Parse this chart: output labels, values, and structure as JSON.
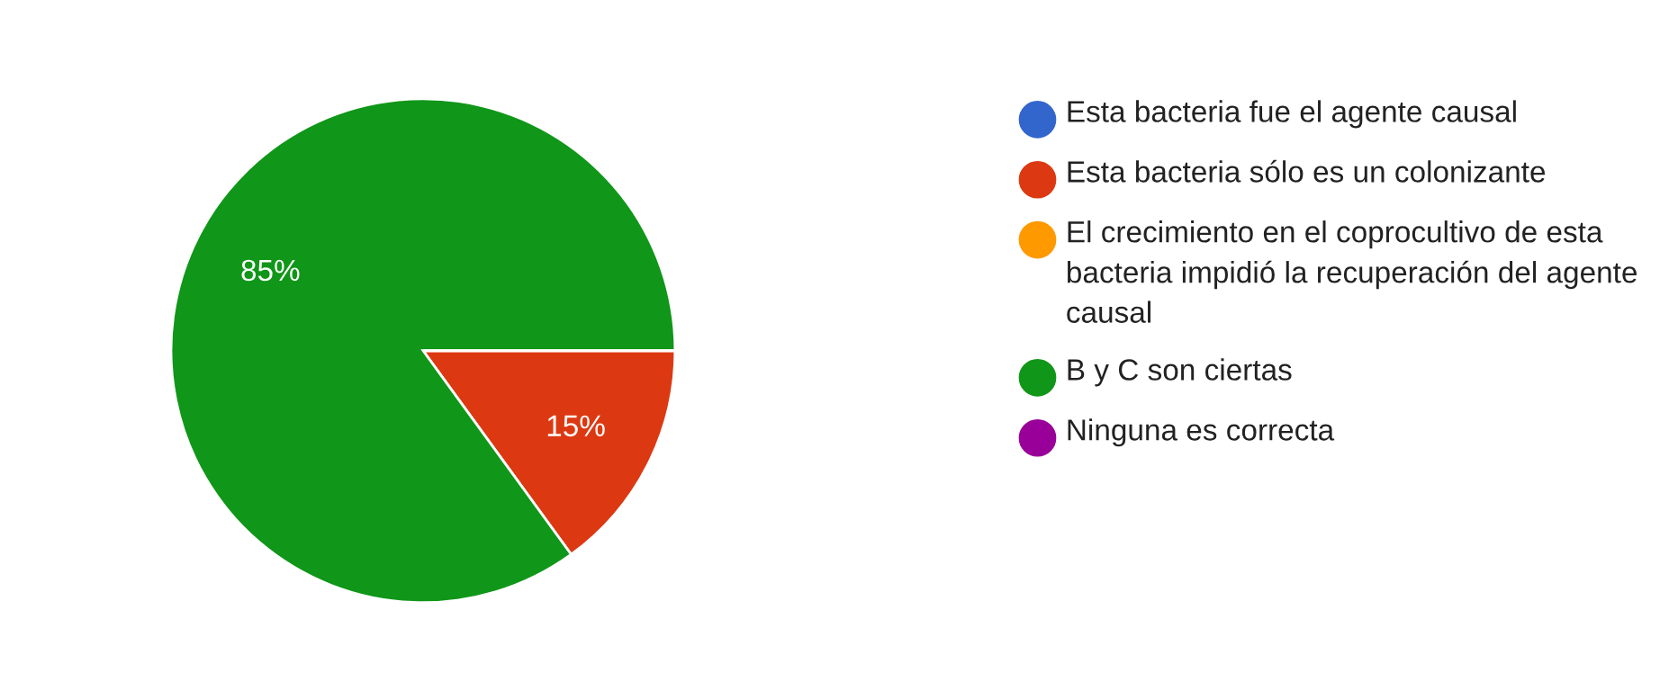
{
  "chart_data": {
    "type": "pie",
    "categories": [
      "Esta bacteria fue el agente causal",
      "Esta bacteria sólo es un colonizante",
      "El crecimiento en el coprocultivo de esta bacteria impidió la recuperación del agente causal",
      "B y C son ciertas",
      "Ninguna es correcta"
    ],
    "values": [
      0,
      15,
      0,
      85,
      0
    ],
    "colors": [
      "#3366cc",
      "#dc3912",
      "#ff9900",
      "#109618",
      "#990099"
    ],
    "value_labels": [
      null,
      "15%",
      null,
      "85%",
      null
    ],
    "legend": "right"
  }
}
